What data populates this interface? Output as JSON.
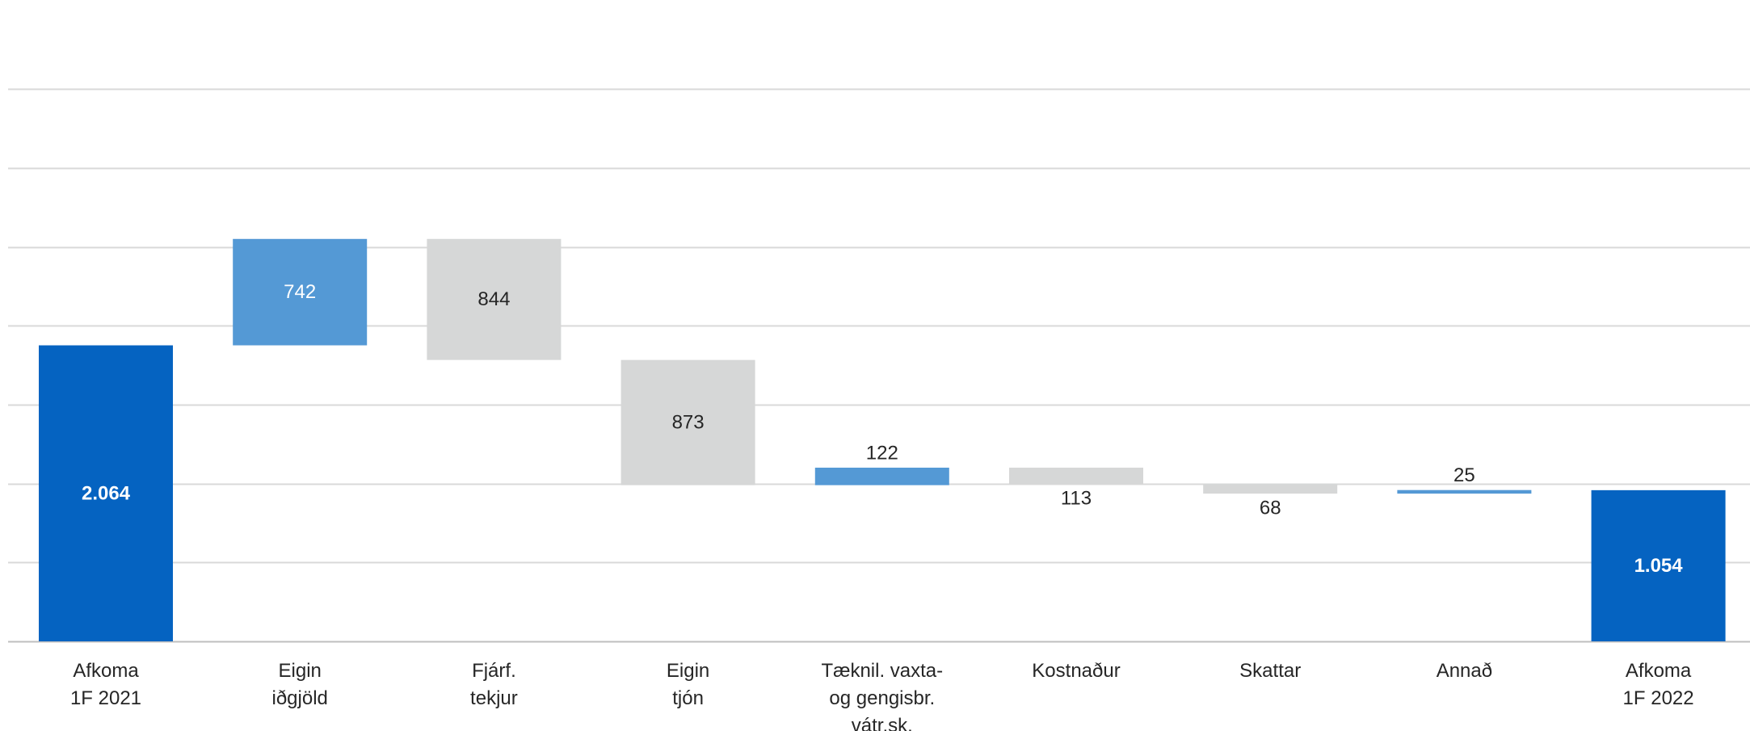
{
  "chart_data": {
    "type": "bar",
    "subtype": "waterfall",
    "title": "",
    "xlabel": "",
    "ylabel": "",
    "grid": true,
    "legend": "none",
    "ylim": [
      0,
      3900
    ],
    "categories": [
      [
        "Afkoma",
        "1F 2021"
      ],
      [
        "Eigin",
        "iðgjöld"
      ],
      [
        "Fjárf.",
        "tekjur"
      ],
      [
        "Eigin",
        "tjón"
      ],
      [
        "Tæknil. vaxta-",
        "og  gengisbr.",
        "vátr.sk."
      ],
      [
        "Kostnaður"
      ],
      [
        "Skattar"
      ],
      [
        "Annað"
      ],
      [
        "Afkoma",
        "1F 2022"
      ]
    ],
    "steps": [
      {
        "label": "2.064",
        "value": 2064,
        "kind": "total",
        "color": "#0563C1"
      },
      {
        "label": "742",
        "value": 742,
        "kind": "increase",
        "color": "#5499D5"
      },
      {
        "label": "844",
        "value": -844,
        "kind": "decrease",
        "color": "#D6D7D7"
      },
      {
        "label": "873",
        "value": -873,
        "kind": "decrease",
        "color": "#D6D7D7"
      },
      {
        "label": "122",
        "value": 122,
        "kind": "increase",
        "color": "#5499D5"
      },
      {
        "label": "113",
        "value": -113,
        "kind": "decrease",
        "color": "#D6D7D7"
      },
      {
        "label": "68",
        "value": -68,
        "kind": "decrease",
        "color": "#D6D7D7"
      },
      {
        "label": "25",
        "value": 25,
        "kind": "increase",
        "color": "#5499D5"
      },
      {
        "label": "1.054",
        "value": 1054,
        "kind": "total",
        "color": "#0563C1"
      }
    ],
    "colors": {
      "total": "#0563C1",
      "increase": "#5499D5",
      "decrease": "#D6D7D7",
      "grid": "#D9D9D9",
      "total_label": "#FFFFFF",
      "increase_inside_label": "#FFFFFF",
      "other_label": "#262626"
    }
  }
}
